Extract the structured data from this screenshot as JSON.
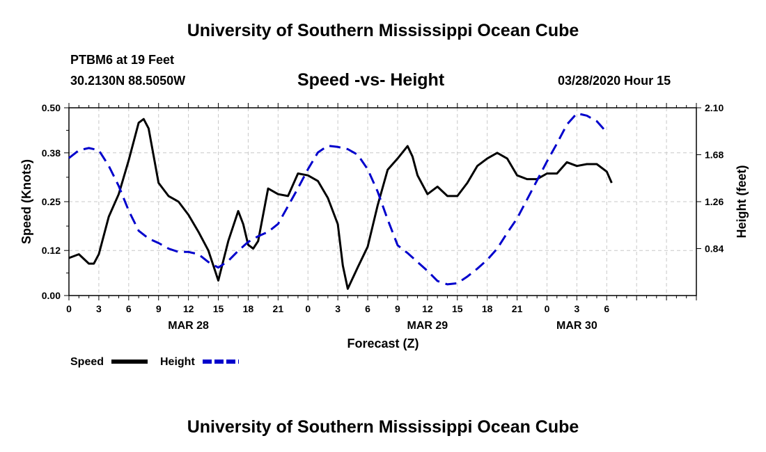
{
  "header": {
    "top_title": "University of Southern Mississippi Ocean Cube",
    "station": "PTBM6 at 19 Feet",
    "coordinates": "30.2130N 88.5050W",
    "chart_title": "Speed -vs- Height",
    "timestamp": "03/28/2020 Hour 15",
    "bottom_title": "University of Southern Mississippi Ocean Cube"
  },
  "colors": {
    "speed": "#000000",
    "height": "#0000cc",
    "grid": "#c8c8c8"
  },
  "chart_data": {
    "type": "line",
    "title": "Speed -vs- Height",
    "xlabel": "Forecast (Z)",
    "ylabel": "Speed (Knots)",
    "y2label": "Height (feet)",
    "xlim": [
      0,
      63
    ],
    "ylim": [
      0,
      0.5
    ],
    "y2lim": [
      0.42,
      2.1
    ],
    "x_ticks": [
      0,
      3,
      6,
      9,
      12,
      15,
      18,
      21,
      24,
      27,
      30,
      33,
      36,
      39,
      42,
      45,
      48,
      51,
      54,
      57,
      60,
      63
    ],
    "x_tick_labels": [
      "0",
      "3",
      "6",
      "9",
      "12",
      "15",
      "18",
      "21",
      "0",
      "3",
      "6",
      "9",
      "12",
      "15",
      "18",
      "21",
      "0",
      "3",
      "6"
    ],
    "x_tick_label_hours": [
      0,
      3,
      6,
      9,
      12,
      15,
      18,
      21,
      24,
      27,
      30,
      33,
      36,
      39,
      42,
      45,
      48,
      51,
      54
    ],
    "date_labels": [
      {
        "label": "MAR 28",
        "hour": 12
      },
      {
        "label": "MAR 29",
        "hour": 36
      },
      {
        "label": "MAR 30",
        "hour": 51
      }
    ],
    "y_ticks": [
      0.0,
      0.12,
      0.25,
      0.38,
      0.5
    ],
    "y_tick_labels": [
      "0.00",
      "0.12",
      "0.25",
      "0.38",
      "0.50"
    ],
    "y2_ticks": [
      0.84,
      1.26,
      1.68,
      2.1
    ],
    "y2_tick_labels": [
      "0.84",
      "1.26",
      "1.68",
      "2.10"
    ],
    "grid": true,
    "legend_position": "bottom-left",
    "series": [
      {
        "name": "Speed",
        "axis": "left",
        "style": "solid",
        "x": [
          0,
          1,
          2,
          2.5,
          3,
          4,
          5,
          6,
          7,
          7.5,
          8,
          9,
          10,
          11,
          12,
          13,
          14,
          15,
          16,
          17,
          17.5,
          18,
          18.5,
          19,
          20,
          21,
          22,
          23,
          24,
          25,
          26,
          27,
          27.5,
          28,
          29,
          30,
          31,
          32,
          33,
          34,
          34.5,
          35,
          36,
          37,
          38,
          39,
          40,
          41,
          42,
          43,
          44,
          45,
          46,
          47,
          48,
          49,
          50,
          51,
          52,
          53,
          54,
          54.5
        ],
        "values": [
          0.1,
          0.11,
          0.085,
          0.085,
          0.11,
          0.21,
          0.27,
          0.36,
          0.46,
          0.47,
          0.445,
          0.3,
          0.265,
          0.25,
          0.215,
          0.17,
          0.12,
          0.04,
          0.145,
          0.225,
          0.19,
          0.135,
          0.125,
          0.145,
          0.285,
          0.27,
          0.265,
          0.325,
          0.32,
          0.305,
          0.26,
          0.19,
          0.08,
          0.018,
          0.075,
          0.13,
          0.24,
          0.335,
          0.365,
          0.398,
          0.37,
          0.32,
          0.27,
          0.29,
          0.265,
          0.265,
          0.3,
          0.345,
          0.365,
          0.38,
          0.365,
          0.32,
          0.31,
          0.31,
          0.325,
          0.325,
          0.355,
          0.345,
          0.35,
          0.35,
          0.33,
          0.3
        ]
      },
      {
        "name": "Height",
        "axis": "right",
        "style": "dashed",
        "x": [
          0,
          1,
          2,
          3,
          4,
          5,
          6,
          7,
          8,
          9,
          10,
          11,
          12,
          13,
          14,
          15,
          16,
          17,
          18,
          19,
          20,
          21,
          22,
          23,
          24,
          25,
          26,
          27,
          28,
          29,
          30,
          31,
          32,
          33,
          34,
          35,
          36,
          37,
          38,
          39,
          40,
          41,
          42,
          43,
          44,
          45,
          46,
          47,
          48,
          49,
          50,
          51,
          52,
          53,
          54
        ],
        "values": [
          1.65,
          1.72,
          1.74,
          1.72,
          1.58,
          1.4,
          1.18,
          1.0,
          0.93,
          0.89,
          0.84,
          0.81,
          0.81,
          0.79,
          0.72,
          0.67,
          0.73,
          0.82,
          0.9,
          0.95,
          0.99,
          1.06,
          1.22,
          1.38,
          1.55,
          1.7,
          1.76,
          1.75,
          1.73,
          1.68,
          1.55,
          1.35,
          1.1,
          0.87,
          0.8,
          0.72,
          0.64,
          0.55,
          0.52,
          0.53,
          0.59,
          0.66,
          0.74,
          0.84,
          0.98,
          1.11,
          1.28,
          1.45,
          1.62,
          1.78,
          1.95,
          2.05,
          2.03,
          1.98,
          1.88
        ]
      }
    ]
  },
  "legend": {
    "speed_label": "Speed",
    "height_label": "Height"
  }
}
